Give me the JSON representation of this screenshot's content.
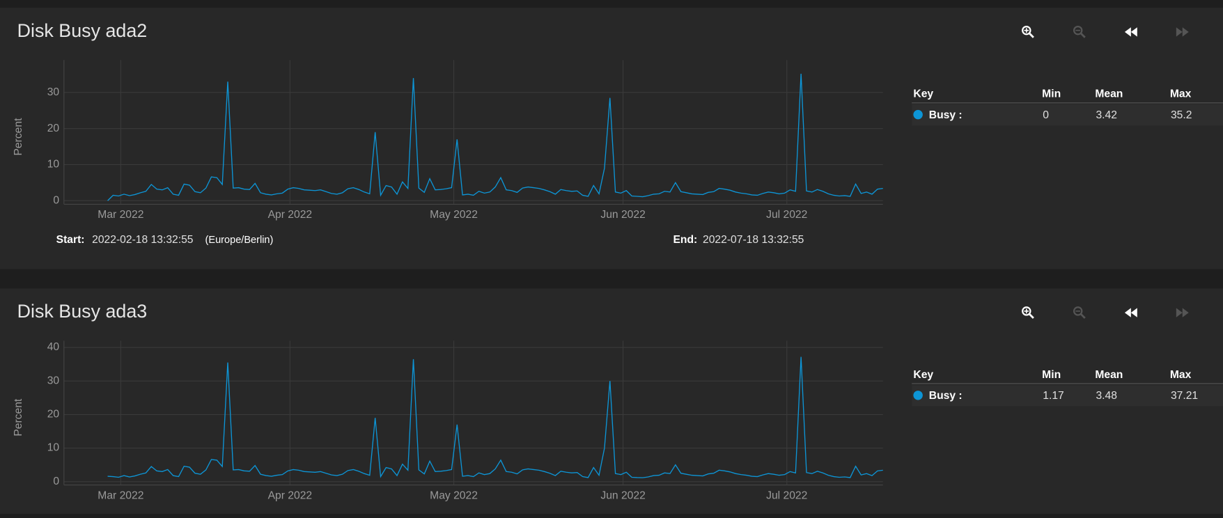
{
  "chart_data": [
    {
      "type": "line",
      "ylabel": "Percent",
      "x": [
        8,
        9,
        10,
        11,
        12,
        13,
        14,
        15,
        16,
        17,
        18,
        19,
        20,
        21,
        22,
        23,
        24,
        25,
        26,
        27,
        28,
        29,
        30,
        31,
        32,
        33,
        34,
        35,
        36,
        37,
        38,
        39,
        40,
        41,
        42,
        43,
        44,
        45,
        46,
        47,
        48,
        49,
        50,
        51,
        52,
        53,
        54,
        55,
        56,
        57,
        58,
        59,
        60,
        61,
        62,
        63,
        64,
        65,
        66,
        67,
        68,
        69,
        70,
        71,
        72,
        73,
        74,
        75,
        76,
        77,
        78,
        79,
        80,
        81,
        82,
        83,
        84,
        85,
        86,
        87,
        88,
        89,
        90,
        91,
        92,
        93,
        94,
        95,
        96,
        97,
        98,
        99,
        100,
        101,
        102,
        103,
        104,
        105,
        106,
        107,
        108,
        109,
        110,
        111,
        112,
        113,
        114,
        115,
        116,
        117,
        118,
        119,
        120,
        121,
        122,
        123,
        124,
        125,
        126,
        127,
        128,
        129,
        130,
        131,
        132,
        133,
        134,
        135,
        136,
        137,
        138,
        139,
        140,
        141,
        142,
        143,
        144,
        145,
        146,
        147,
        148,
        149,
        150
      ],
      "xlim": [
        0,
        150
      ],
      "xticks": [
        {
          "value": 10.4,
          "label": "Mar 2022"
        },
        {
          "value": 41.4,
          "label": "Apr 2022"
        },
        {
          "value": 71.4,
          "label": "May 2022"
        },
        {
          "value": 102.4,
          "label": "Jun 2022"
        },
        {
          "value": 132.4,
          "label": "Jul 2022"
        }
      ],
      "ylim": [
        -1,
        39
      ],
      "yticks": [
        0,
        10,
        20,
        30
      ],
      "grid": true,
      "series": [
        {
          "name": "Busy :",
          "color": "#0d95d6",
          "values": [
            0,
            1.5,
            1.3,
            1.8,
            1.4,
            1.7,
            2.2,
            2.6,
            4.5,
            3.2,
            3.0,
            3.6,
            1.8,
            1.5,
            4.6,
            4.3,
            2.5,
            2.2,
            3.5,
            6.6,
            6.4,
            4.5,
            33,
            3.5,
            3.6,
            3.2,
            3.1,
            4.8,
            2.2,
            1.8,
            1.6,
            1.9,
            2.1,
            3.2,
            3.6,
            3.4,
            3.0,
            2.9,
            2.8,
            3.0,
            2.5,
            2.0,
            1.8,
            2.2,
            3.3,
            3.6,
            3.1,
            2.4,
            1.9,
            19,
            1.5,
            4.2,
            3.8,
            1.8,
            5.2,
            3.4,
            34,
            3.5,
            2.3,
            6.1,
            3.0,
            3.1,
            3.3,
            3.6,
            17,
            1.6,
            1.8,
            1.5,
            2.6,
            2.1,
            2.4,
            3.8,
            6.4,
            3.0,
            2.8,
            2.3,
            3.5,
            3.8,
            3.6,
            3.4,
            3.0,
            2.5,
            1.8,
            3.1,
            2.8,
            2.6,
            2.7,
            1.5,
            1.2,
            4.2,
            1.9,
            9,
            28.5,
            2.4,
            2.1,
            2.8,
            1.3,
            1.2,
            1.1,
            1.4,
            1.8,
            1.9,
            2.6,
            2.4,
            5,
            2.5,
            2.2,
            1.9,
            1.8,
            1.7,
            2.3,
            2.5,
            3.4,
            3.2,
            2.9,
            2.4,
            2.1,
            1.9,
            1.6,
            1.5,
            2.0,
            2.4,
            2.2,
            1.9,
            2.1,
            3.0,
            2.6,
            35.2,
            2.7,
            2.4,
            3.1,
            2.6,
            1.9,
            1.5,
            1.3,
            1.4,
            1.2,
            4.6,
            2.0,
            2.4,
            1.8,
            3.2,
            3.4
          ]
        }
      ]
    },
    {
      "type": "line",
      "ylabel": "Percent",
      "x": [
        8,
        9,
        10,
        11,
        12,
        13,
        14,
        15,
        16,
        17,
        18,
        19,
        20,
        21,
        22,
        23,
        24,
        25,
        26,
        27,
        28,
        29,
        30,
        31,
        32,
        33,
        34,
        35,
        36,
        37,
        38,
        39,
        40,
        41,
        42,
        43,
        44,
        45,
        46,
        47,
        48,
        49,
        50,
        51,
        52,
        53,
        54,
        55,
        56,
        57,
        58,
        59,
        60,
        61,
        62,
        63,
        64,
        65,
        66,
        67,
        68,
        69,
        70,
        71,
        72,
        73,
        74,
        75,
        76,
        77,
        78,
        79,
        80,
        81,
        82,
        83,
        84,
        85,
        86,
        87,
        88,
        89,
        90,
        91,
        92,
        93,
        94,
        95,
        96,
        97,
        98,
        99,
        100,
        101,
        102,
        103,
        104,
        105,
        106,
        107,
        108,
        109,
        110,
        111,
        112,
        113,
        114,
        115,
        116,
        117,
        118,
        119,
        120,
        121,
        122,
        123,
        124,
        125,
        126,
        127,
        128,
        129,
        130,
        131,
        132,
        133,
        134,
        135,
        136,
        137,
        138,
        139,
        140,
        141,
        142,
        143,
        144,
        145,
        146,
        147,
        148,
        149,
        150
      ],
      "xlim": [
        0,
        150
      ],
      "xticks": [
        {
          "value": 10.4,
          "label": "Mar 2022"
        },
        {
          "value": 41.4,
          "label": "Apr 2022"
        },
        {
          "value": 71.4,
          "label": "May 2022"
        },
        {
          "value": 102.4,
          "label": "Jun 2022"
        },
        {
          "value": 132.4,
          "label": "Jul 2022"
        }
      ],
      "ylim": [
        -1,
        42
      ],
      "yticks": [
        0,
        10,
        20,
        30,
        40
      ],
      "grid": true,
      "series": [
        {
          "name": "Busy :",
          "color": "#0d95d6",
          "values": [
            1.6,
            1.5,
            1.3,
            1.8,
            1.4,
            1.7,
            2.2,
            2.6,
            4.5,
            3.2,
            3.0,
            3.6,
            1.8,
            1.5,
            4.6,
            4.3,
            2.5,
            2.2,
            3.5,
            6.6,
            6.4,
            4.5,
            35.5,
            3.5,
            3.6,
            3.2,
            3.1,
            4.8,
            2.2,
            1.8,
            1.6,
            1.9,
            2.1,
            3.2,
            3.6,
            3.4,
            3.0,
            2.9,
            2.8,
            3.0,
            2.5,
            2.0,
            1.8,
            2.2,
            3.3,
            3.6,
            3.1,
            2.4,
            1.9,
            19,
            1.5,
            4.2,
            3.8,
            1.8,
            5.2,
            3.4,
            36.5,
            3.5,
            2.3,
            6.1,
            3.0,
            3.1,
            3.3,
            3.6,
            17,
            1.6,
            1.8,
            1.5,
            2.6,
            2.1,
            2.4,
            3.8,
            6.4,
            3.0,
            2.8,
            2.3,
            3.5,
            3.8,
            3.6,
            3.4,
            3.0,
            2.5,
            1.8,
            3.1,
            2.8,
            2.6,
            2.7,
            1.5,
            1.2,
            4.2,
            1.9,
            10,
            30,
            2.4,
            2.1,
            2.8,
            1.3,
            1.2,
            1.17,
            1.4,
            1.8,
            1.9,
            2.6,
            2.4,
            5,
            2.5,
            2.2,
            1.9,
            1.8,
            1.7,
            2.3,
            2.5,
            3.4,
            3.2,
            2.9,
            2.4,
            2.1,
            1.9,
            1.6,
            1.5,
            2.0,
            2.4,
            2.2,
            1.9,
            2.1,
            3.0,
            2.6,
            37.21,
            2.7,
            2.4,
            3.1,
            2.6,
            1.9,
            1.5,
            1.3,
            1.4,
            1.2,
            4.6,
            2.0,
            2.4,
            1.8,
            3.2,
            3.4
          ]
        }
      ]
    }
  ],
  "panels": [
    {
      "title": "Disk Busy ada2",
      "legend": {
        "headers": [
          "Key",
          "Min",
          "Mean",
          "Max"
        ],
        "min": "0",
        "mean": "3.42",
        "max": "35.2"
      },
      "start_label": "Start:",
      "start": "2022-02-18 13:32:55",
      "timezone": "(Europe/Berlin)",
      "end_label": "End:",
      "end": "2022-07-18 13:32:55"
    },
    {
      "title": "Disk Busy ada3",
      "legend": {
        "headers": [
          "Key",
          "Min",
          "Mean",
          "Max"
        ],
        "min": "1.17",
        "mean": "3.48",
        "max": "37.21"
      }
    }
  ]
}
